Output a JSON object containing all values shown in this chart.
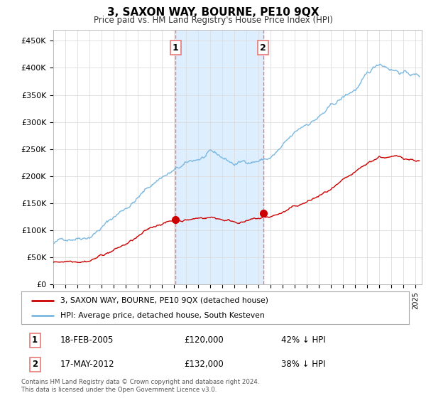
{
  "title": "3, SAXON WAY, BOURNE, PE10 9QX",
  "subtitle": "Price paid vs. HM Land Registry's House Price Index (HPI)",
  "ylabel_ticks": [
    "£0",
    "£50K",
    "£100K",
    "£150K",
    "£200K",
    "£250K",
    "£300K",
    "£350K",
    "£400K",
    "£450K"
  ],
  "ytick_values": [
    0,
    50000,
    100000,
    150000,
    200000,
    250000,
    300000,
    350000,
    400000,
    450000
  ],
  "ylim": [
    0,
    470000
  ],
  "xlim_start": 1995.0,
  "xlim_end": 2025.5,
  "hpi_color": "#7ab8e0",
  "price_color": "#cc0000",
  "purchase1_x": 2005.13,
  "purchase1_y": 120000,
  "purchase2_x": 2012.38,
  "purchase2_y": 132000,
  "vline_color": "#e87878",
  "shade_color": "#ddeeff",
  "legend_label1": "3, SAXON WAY, BOURNE, PE10 9QX (detached house)",
  "legend_label2": "HPI: Average price, detached house, South Kesteven",
  "annotation1_label": "1",
  "annotation1_date": "18-FEB-2005",
  "annotation1_price": "£120,000",
  "annotation1_hpi": "42% ↓ HPI",
  "annotation2_label": "2",
  "annotation2_date": "17-MAY-2012",
  "annotation2_price": "£132,000",
  "annotation2_hpi": "38% ↓ HPI",
  "footer": "Contains HM Land Registry data © Crown copyright and database right 2024.\nThis data is licensed under the Open Government Licence v3.0.",
  "background_color": "#ffffff",
  "grid_color": "#dddddd"
}
